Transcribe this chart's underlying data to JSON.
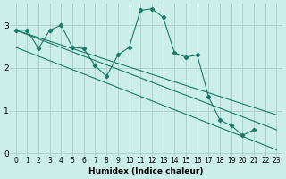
{
  "xlabel": "Humidex (Indice chaleur)",
  "bg_color": "#cceee8",
  "grid_color": "#aacccc",
  "line_color": "#1a7a6a",
  "xlim": [
    -0.5,
    23.5
  ],
  "ylim": [
    -0.05,
    3.5
  ],
  "yticks": [
    0,
    1,
    2,
    3
  ],
  "xticks": [
    0,
    1,
    2,
    3,
    4,
    5,
    6,
    7,
    8,
    9,
    10,
    11,
    12,
    13,
    14,
    15,
    16,
    17,
    18,
    19,
    20,
    21,
    22,
    23
  ],
  "line1_x": [
    0,
    23
  ],
  "line1_y": [
    2.88,
    0.55
  ],
  "line2_x": [
    0,
    23
  ],
  "line2_y": [
    2.48,
    0.08
  ],
  "line3_x": [
    0,
    23
  ],
  "line3_y": [
    2.88,
    0.9
  ],
  "curve_x": [
    0,
    1,
    2,
    3,
    4,
    5,
    6,
    7,
    8,
    9,
    10,
    11,
    12,
    13,
    14,
    15,
    16,
    17,
    18,
    19,
    20,
    21,
    22
  ],
  "curve_y": [
    2.88,
    2.88,
    2.45,
    2.88,
    3.0,
    2.48,
    2.45,
    2.05,
    1.8,
    2.3,
    2.48,
    3.35,
    3.38,
    3.18,
    2.35,
    2.25,
    2.3,
    1.32,
    0.78,
    0.65,
    0.42,
    0.55,
    null
  ]
}
